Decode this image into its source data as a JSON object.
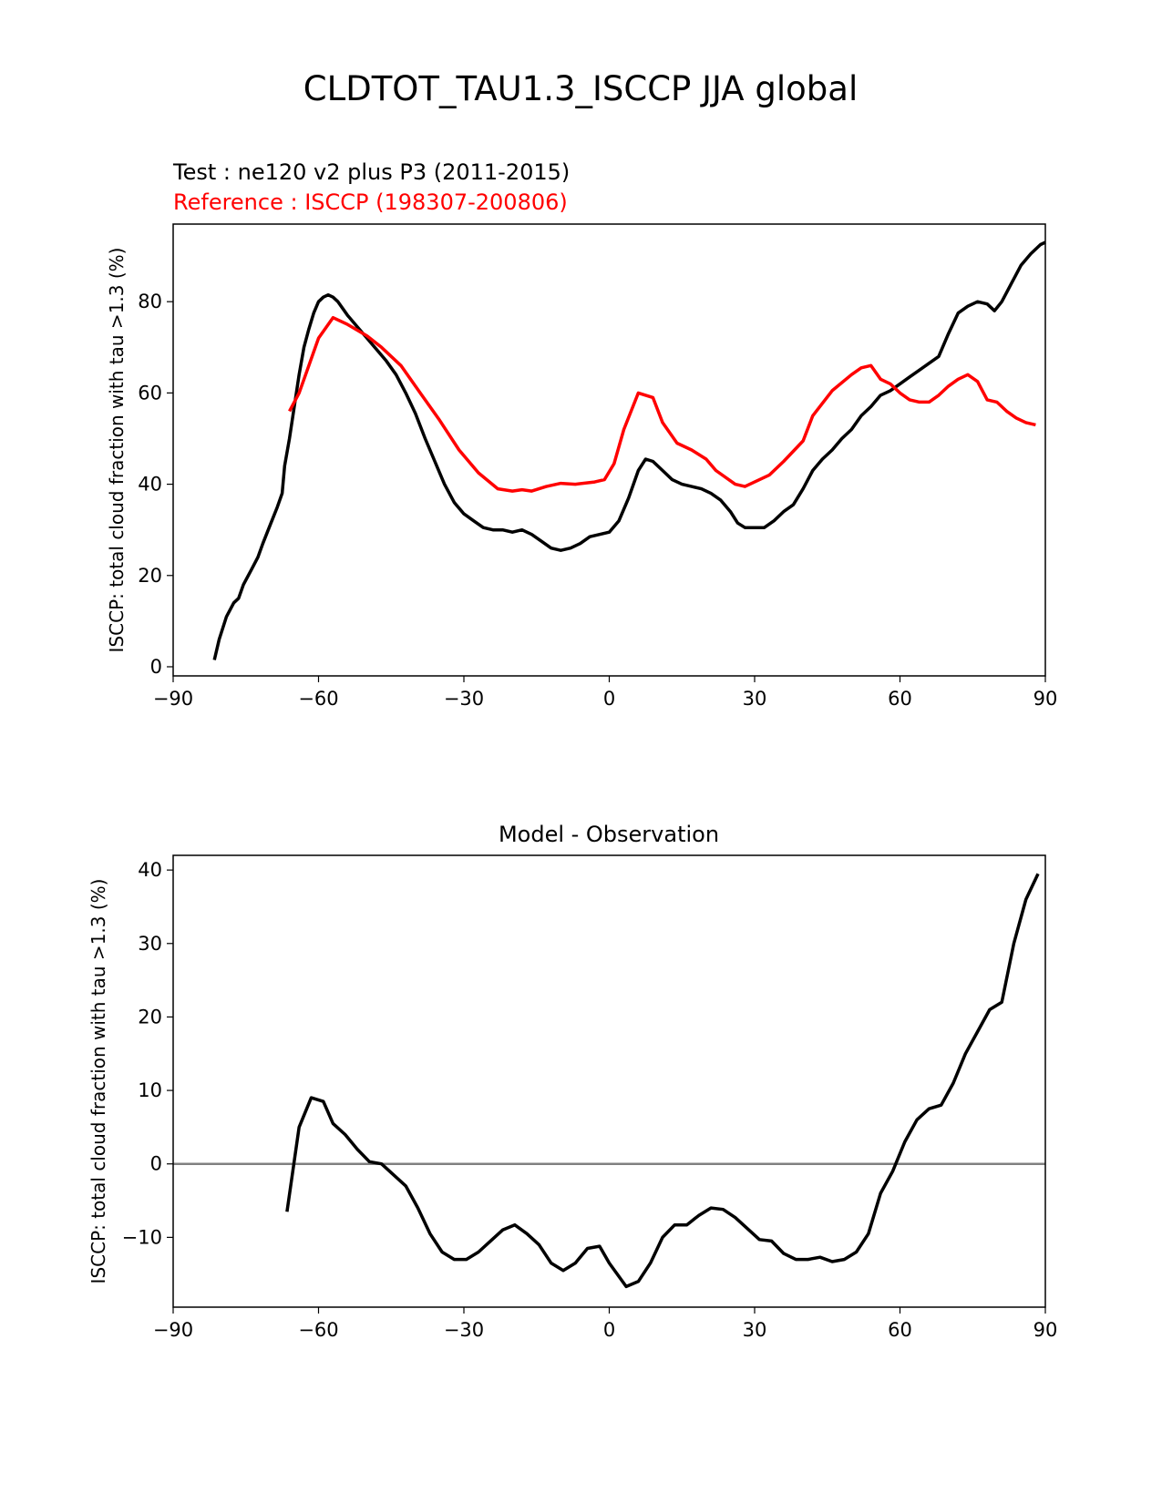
{
  "suptitle": "CLDTOT_TAU1.3_ISCCP JJA global",
  "top": {
    "test_label": "Test : ne120 v2 plus P3 (2011-2015)",
    "ref_label": "Reference : ISCCP (198307-200806)",
    "ylabel": "ISCCP: total cloud fraction with tau >1.3 (%)"
  },
  "bottom": {
    "title": "Model - Observation",
    "ylabel": "ISCCP: total cloud fraction with tau >1.3 (%)"
  },
  "colors": {
    "test": "#000000",
    "reference": "#ff0000",
    "zero_line": "#808080"
  },
  "chart_data": [
    {
      "type": "line",
      "xlim": [
        -90,
        90
      ],
      "ylim": [
        -2,
        97
      ],
      "xticks": [
        -90,
        -60,
        -30,
        0,
        30,
        60,
        90
      ],
      "xtick_labels": [
        "−90",
        "−60",
        "−30",
        "0",
        "30",
        "60",
        "90"
      ],
      "yticks": [
        0,
        20,
        40,
        60,
        80
      ],
      "ytick_labels": [
        "0",
        "20",
        "40",
        "60",
        "80"
      ],
      "series": [
        {
          "name": "Test : ne120 v2 plus P3 (2011-2015)",
          "color": "#000000",
          "points": [
            [
              -81.5,
              1.5
            ],
            [
              -80.5,
              6
            ],
            [
              -79,
              11
            ],
            [
              -77.5,
              14
            ],
            [
              -76.5,
              15
            ],
            [
              -75.5,
              18
            ],
            [
              -74,
              21
            ],
            [
              -72.5,
              24
            ],
            [
              -71.5,
              27
            ],
            [
              -70,
              31
            ],
            [
              -68.5,
              35
            ],
            [
              -67.5,
              38
            ],
            [
              -67,
              44
            ],
            [
              -66,
              50
            ],
            [
              -65,
              57
            ],
            [
              -64,
              64
            ],
            [
              -63,
              70
            ],
            [
              -62,
              74
            ],
            [
              -61,
              77.5
            ],
            [
              -60,
              80
            ],
            [
              -59,
              81
            ],
            [
              -58,
              81.5
            ],
            [
              -57,
              81
            ],
            [
              -56,
              80
            ],
            [
              -54,
              77
            ],
            [
              -52,
              74.5
            ],
            [
              -50,
              72
            ],
            [
              -48,
              69.5
            ],
            [
              -46,
              67
            ],
            [
              -44,
              64
            ],
            [
              -42,
              60
            ],
            [
              -40,
              55.5
            ],
            [
              -38,
              50
            ],
            [
              -36,
              45
            ],
            [
              -34,
              40
            ],
            [
              -32,
              36
            ],
            [
              -30,
              33.5
            ],
            [
              -28,
              32
            ],
            [
              -26,
              30.5
            ],
            [
              -24,
              30
            ],
            [
              -22,
              30
            ],
            [
              -20,
              29.5
            ],
            [
              -18,
              30
            ],
            [
              -16,
              29
            ],
            [
              -14,
              27.5
            ],
            [
              -12,
              26
            ],
            [
              -10,
              25.5
            ],
            [
              -8,
              26
            ],
            [
              -6,
              27
            ],
            [
              -4,
              28.5
            ],
            [
              -2,
              29
            ],
            [
              0,
              29.5
            ],
            [
              2,
              32
            ],
            [
              4,
              37
            ],
            [
              6,
              43
            ],
            [
              7.5,
              45.5
            ],
            [
              9,
              45
            ],
            [
              11,
              43
            ],
            [
              13,
              41
            ],
            [
              15,
              40
            ],
            [
              17,
              39.5
            ],
            [
              19,
              39
            ],
            [
              21,
              38
            ],
            [
              23,
              36.5
            ],
            [
              25,
              34
            ],
            [
              26.5,
              31.5
            ],
            [
              28,
              30.5
            ],
            [
              30,
              30.5
            ],
            [
              32,
              30.5
            ],
            [
              34,
              32
            ],
            [
              36,
              34
            ],
            [
              38,
              35.5
            ],
            [
              40,
              39
            ],
            [
              42,
              43
            ],
            [
              44,
              45.5
            ],
            [
              46,
              47.5
            ],
            [
              48,
              50
            ],
            [
              50,
              52
            ],
            [
              52,
              55
            ],
            [
              54,
              57
            ],
            [
              56,
              59.5
            ],
            [
              58,
              60.5
            ],
            [
              60,
              62
            ],
            [
              62,
              63.5
            ],
            [
              64,
              65
            ],
            [
              66,
              66.5
            ],
            [
              68,
              68
            ],
            [
              70,
              73
            ],
            [
              72,
              77.5
            ],
            [
              74,
              79
            ],
            [
              76,
              80
            ],
            [
              78,
              79.5
            ],
            [
              79.5,
              78
            ],
            [
              81,
              80
            ],
            [
              83,
              84
            ],
            [
              85,
              88
            ],
            [
              87,
              90.5
            ],
            [
              89,
              92.5
            ],
            [
              90,
              93
            ]
          ]
        },
        {
          "name": "Reference : ISCCP (198307-200806)",
          "color": "#ff0000",
          "points": [
            [
              -66,
              56
            ],
            [
              -64,
              60
            ],
            [
              -62,
              66
            ],
            [
              -60,
              72
            ],
            [
              -57,
              76.5
            ],
            [
              -54,
              75
            ],
            [
              -50,
              72.5
            ],
            [
              -47,
              70
            ],
            [
              -43,
              66
            ],
            [
              -39,
              60
            ],
            [
              -35,
              54
            ],
            [
              -31,
              47.5
            ],
            [
              -27,
              42.5
            ],
            [
              -23,
              39
            ],
            [
              -20,
              38.5
            ],
            [
              -18,
              38.8
            ],
            [
              -16,
              38.5
            ],
            [
              -13,
              39.5
            ],
            [
              -10,
              40.2
            ],
            [
              -7,
              40
            ],
            [
              -3,
              40.5
            ],
            [
              -1,
              41
            ],
            [
              1,
              44.5
            ],
            [
              3,
              52
            ],
            [
              6,
              60
            ],
            [
              9,
              59
            ],
            [
              11,
              53.5
            ],
            [
              14,
              49
            ],
            [
              17,
              47.5
            ],
            [
              20,
              45.5
            ],
            [
              22,
              43
            ],
            [
              26,
              40
            ],
            [
              28,
              39.5
            ],
            [
              30,
              40.5
            ],
            [
              33,
              42
            ],
            [
              36,
              45
            ],
            [
              40,
              49.5
            ],
            [
              42,
              55
            ],
            [
              46,
              60.5
            ],
            [
              50,
              64
            ],
            [
              52,
              65.5
            ],
            [
              54,
              66
            ],
            [
              56,
              63
            ],
            [
              58,
              62
            ],
            [
              60,
              60
            ],
            [
              62,
              58.5
            ],
            [
              64,
              58
            ],
            [
              66,
              58
            ],
            [
              68,
              59.5
            ],
            [
              70,
              61.5
            ],
            [
              72,
              63
            ],
            [
              74,
              64
            ],
            [
              76,
              62.5
            ],
            [
              78,
              58.5
            ],
            [
              80,
              58
            ],
            [
              82,
              56
            ],
            [
              84,
              54.5
            ],
            [
              86,
              53.5
            ],
            [
              88,
              53
            ]
          ]
        }
      ]
    },
    {
      "type": "line",
      "title": "Model - Observation",
      "xlim": [
        -90,
        90
      ],
      "ylim": [
        -19.5,
        42
      ],
      "xticks": [
        -90,
        -60,
        -30,
        0,
        30,
        60,
        90
      ],
      "xtick_labels": [
        "−90",
        "−60",
        "−30",
        "0",
        "30",
        "60",
        "90"
      ],
      "yticks": [
        -10,
        0,
        10,
        20,
        30,
        40
      ],
      "ytick_labels": [
        "−10",
        "0",
        "10",
        "20",
        "30",
        "40"
      ],
      "hline": 0,
      "series": [
        {
          "color": "#000000",
          "points": [
            [
              -66.5,
              -6.5
            ],
            [
              -64,
              5
            ],
            [
              -61.5,
              9
            ],
            [
              -59,
              8.5
            ],
            [
              -57,
              5.5
            ],
            [
              -54.5,
              4
            ],
            [
              -52,
              2
            ],
            [
              -49.5,
              0.3
            ],
            [
              -47,
              0
            ],
            [
              -44.5,
              -1.5
            ],
            [
              -42,
              -3
            ],
            [
              -39.5,
              -6
            ],
            [
              -37,
              -9.5
            ],
            [
              -34.5,
              -12
            ],
            [
              -32,
              -13
            ],
            [
              -29.5,
              -13
            ],
            [
              -27,
              -12
            ],
            [
              -24.5,
              -10.5
            ],
            [
              -22,
              -9
            ],
            [
              -19.5,
              -8.3
            ],
            [
              -17,
              -9.5
            ],
            [
              -14.5,
              -11
            ],
            [
              -12,
              -13.5
            ],
            [
              -9.5,
              -14.5
            ],
            [
              -7,
              -13.5
            ],
            [
              -4.5,
              -11.5
            ],
            [
              -2,
              -11.2
            ],
            [
              0,
              -13.5
            ],
            [
              3.5,
              -16.7
            ],
            [
              6,
              -16
            ],
            [
              8.5,
              -13.5
            ],
            [
              11,
              -10
            ],
            [
              13.5,
              -8.3
            ],
            [
              16,
              -8.3
            ],
            [
              18.5,
              -7
            ],
            [
              21,
              -6
            ],
            [
              23.5,
              -6.2
            ],
            [
              26,
              -7.3
            ],
            [
              28.5,
              -8.8
            ],
            [
              31,
              -10.3
            ],
            [
              33.5,
              -10.5
            ],
            [
              36,
              -12.2
            ],
            [
              38.5,
              -13
            ],
            [
              41,
              -13
            ],
            [
              43.5,
              -12.7
            ],
            [
              46,
              -13.3
            ],
            [
              48.5,
              -13
            ],
            [
              51,
              -12
            ],
            [
              53.5,
              -9.5
            ],
            [
              56,
              -4
            ],
            [
              58.5,
              -1
            ],
            [
              61,
              3
            ],
            [
              63.5,
              6
            ],
            [
              66,
              7.5
            ],
            [
              68.5,
              8
            ],
            [
              71,
              11
            ],
            [
              73.5,
              15
            ],
            [
              76,
              18
            ],
            [
              78.5,
              21
            ],
            [
              81,
              22
            ],
            [
              83.5,
              30
            ],
            [
              86,
              36
            ],
            [
              88.5,
              39.5
            ]
          ]
        }
      ]
    }
  ]
}
